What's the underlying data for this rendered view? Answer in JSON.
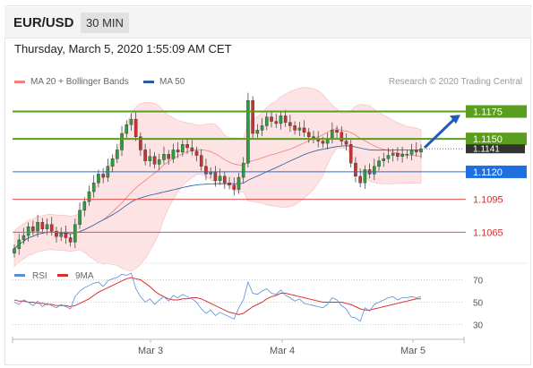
{
  "header": {
    "pair": "EUR/USD",
    "timeframe": "30 MIN"
  },
  "timestamp": "Thursday, March 5, 2020 1:55:09 AM CET",
  "credit": "Research © 2020 Trading Central",
  "legend": [
    {
      "label": "MA 20 + Bollinger Bands",
      "color": "#f08080"
    },
    {
      "label": "MA 50",
      "color": "#2c5aa0"
    }
  ],
  "chart_data": [
    {
      "type": "candlestick",
      "title": "",
      "x_ticks": [
        "Mar 3",
        "Mar 4",
        "Mar 5"
      ],
      "ylim": [
        1.104,
        1.1195
      ],
      "levels": [
        {
          "value": 1.1175,
          "label": "1.1175",
          "kind": "resistance",
          "color": "#5a9e1e"
        },
        {
          "value": 1.115,
          "label": "1.1150",
          "kind": "resistance",
          "color": "#5a9e1e"
        },
        {
          "value": 1.1141,
          "label": "1.1141",
          "kind": "last",
          "color": "#333333"
        },
        {
          "value": 1.112,
          "label": "1.1120",
          "kind": "pivot",
          "color": "#1e6fe0"
        },
        {
          "value": 1.1095,
          "label": "1.1095",
          "kind": "support",
          "color": "#e05050"
        },
        {
          "value": 1.1065,
          "label": "1.1065",
          "kind": "support",
          "color": "#e05050"
        }
      ],
      "close": [
        1.105,
        1.1058,
        1.1062,
        1.107,
        1.1066,
        1.1074,
        1.1068,
        1.1072,
        1.1066,
        1.1061,
        1.1064,
        1.106,
        1.1056,
        1.1072,
        1.1085,
        1.1093,
        1.1102,
        1.111,
        1.1118,
        1.1115,
        1.1125,
        1.1132,
        1.114,
        1.1155,
        1.1163,
        1.1168,
        1.1152,
        1.114,
        1.113,
        1.1134,
        1.1127,
        1.1131,
        1.1136,
        1.1132,
        1.114,
        1.1138,
        1.1145,
        1.1142,
        1.1139,
        1.1135,
        1.1125,
        1.1118,
        1.112,
        1.1112,
        1.1116,
        1.111,
        1.1108,
        1.1104,
        1.1115,
        1.1128,
        1.1185,
        1.1155,
        1.1158,
        1.1162,
        1.117,
        1.1166,
        1.1164,
        1.1171,
        1.1165,
        1.1162,
        1.1158,
        1.116,
        1.1156,
        1.1152,
        1.115,
        1.1148,
        1.1146,
        1.115,
        1.1158,
        1.1156,
        1.1148,
        1.1145,
        1.1128,
        1.1116,
        1.111,
        1.1122,
        1.1118,
        1.1125,
        1.113,
        1.1132,
        1.1135,
        1.1137,
        1.1134,
        1.1136,
        1.1136,
        1.114,
        1.1138,
        1.1141
      ],
      "arrow": {
        "from": 1.1142,
        "to": 1.1172
      },
      "series": [
        {
          "name": "MA 20 + Bollinger Bands"
        },
        {
          "name": "MA 50"
        }
      ]
    },
    {
      "type": "line",
      "series": [
        {
          "name": "RSI",
          "color": "#5b8cd6"
        },
        {
          "name": "9MA",
          "color": "#d83030"
        }
      ],
      "y_ticks": [
        70,
        50,
        30
      ],
      "ylim": [
        20,
        80
      ],
      "rsi": [
        50,
        48,
        52,
        50,
        47,
        51,
        46,
        49,
        47,
        45,
        48,
        46,
        44,
        55,
        60,
        63,
        65,
        67,
        68,
        64,
        69,
        71,
        72,
        75,
        74,
        76,
        62,
        55,
        50,
        53,
        48,
        52,
        55,
        51,
        56,
        54,
        57,
        55,
        53,
        50,
        44,
        40,
        43,
        38,
        41,
        39,
        37,
        35,
        45,
        52,
        68,
        58,
        57,
        60,
        62,
        58,
        57,
        61,
        56,
        54,
        51,
        53,
        49,
        48,
        47,
        46,
        45,
        48,
        54,
        52,
        47,
        44,
        37,
        36,
        33,
        45,
        42,
        48,
        50,
        52,
        54,
        55,
        52,
        54,
        54,
        55,
        54,
        55
      ],
      "ma9": [
        52,
        51,
        51,
        50,
        50,
        49,
        49,
        48,
        48,
        47,
        47,
        47,
        46,
        47,
        49,
        51,
        53,
        56,
        59,
        61,
        63,
        65,
        67,
        69,
        71,
        72,
        71,
        70,
        67,
        64,
        60,
        57,
        55,
        53,
        52,
        52,
        53,
        53,
        54,
        54,
        53,
        51,
        49,
        47,
        45,
        43,
        41,
        40,
        39,
        40,
        43,
        46,
        48,
        50,
        53,
        55,
        56,
        58,
        58,
        57,
        56,
        55,
        54,
        53,
        52,
        51,
        50,
        50,
        50,
        50,
        50,
        49,
        48,
        46,
        44,
        43,
        43,
        44,
        45,
        46,
        47,
        48,
        49,
        50,
        51,
        52,
        53,
        53
      ]
    }
  ]
}
